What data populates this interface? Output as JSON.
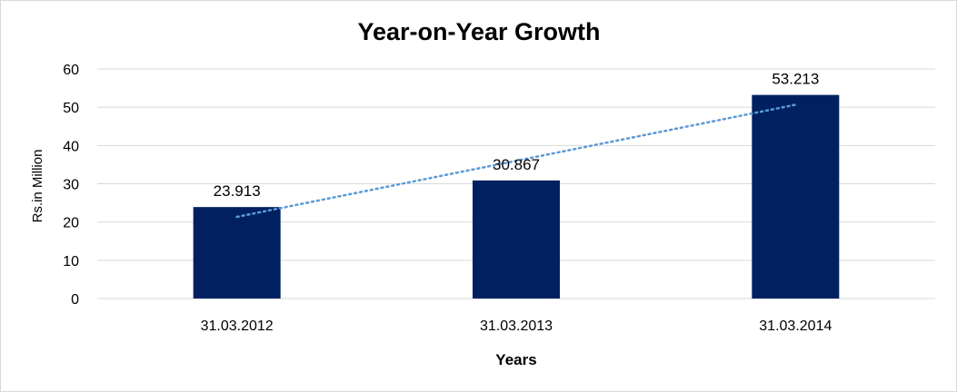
{
  "chart_data": {
    "type": "bar",
    "title": "Year-on-Year Growth",
    "xlabel": "Years",
    "ylabel": "Rs.in Million",
    "categories": [
      "31.03.2012",
      "31.03.2013",
      "31.03.2014"
    ],
    "values": [
      23.913,
      30.867,
      53.213
    ],
    "data_labels": [
      "23.913",
      "30.867",
      "53.213"
    ],
    "ylim": [
      0,
      60
    ],
    "yticks": [
      "0",
      "10",
      "20",
      "30",
      "40",
      "50",
      "60"
    ],
    "grid": true,
    "legend": "none",
    "trendline": "linear",
    "colors": {
      "bar": "#002060",
      "trendline": "#5b9bd5",
      "grid": "#d9d9d9"
    }
  }
}
